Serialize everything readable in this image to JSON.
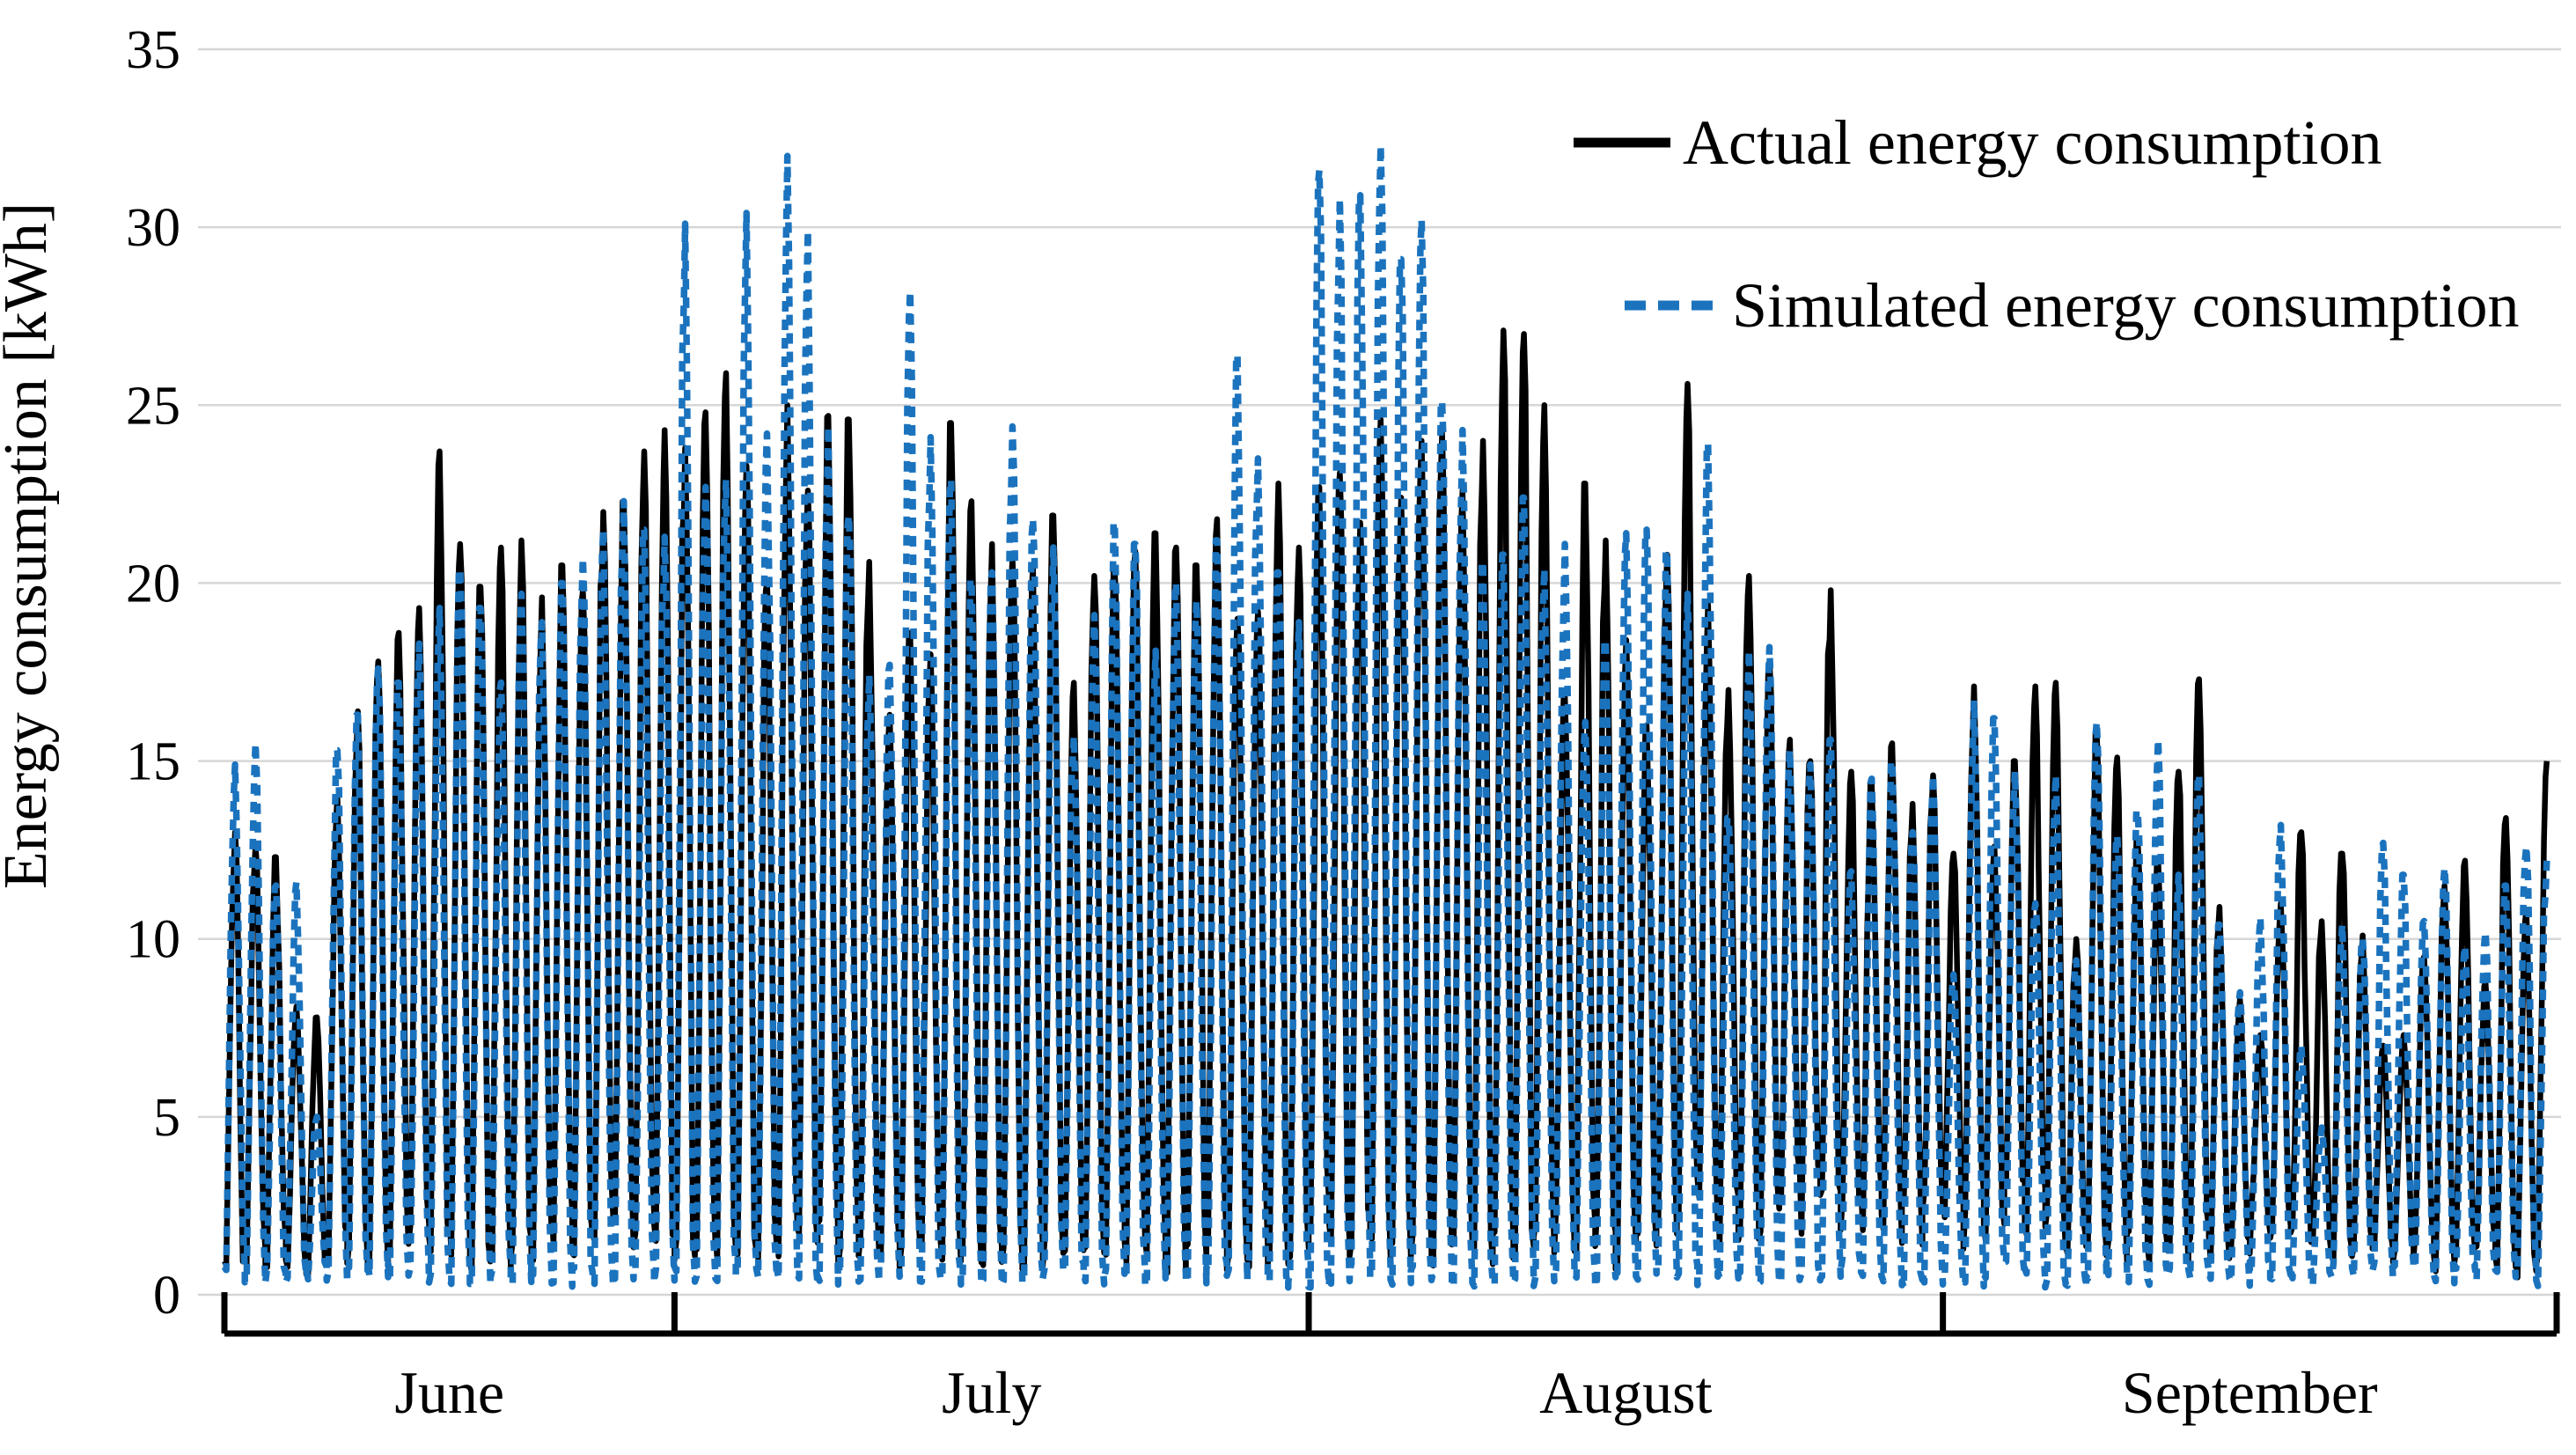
{
  "figure": {
    "kind": "time-series line chart",
    "background": "#ffffff"
  },
  "y_axis": {
    "title": "Energy consumption [kWh]",
    "tick_labels": [
      "0",
      "5",
      "10",
      "15",
      "20",
      "25",
      "30",
      "35"
    ],
    "tick_values": [
      0,
      5,
      10,
      15,
      20,
      25,
      30,
      35
    ],
    "min": 0,
    "max": 35,
    "tick_step": 5
  },
  "x_axis": {
    "month_labels": [
      "June",
      "July",
      "August",
      "September"
    ],
    "style": "bracket axis with tick separators between months"
  },
  "legend": {
    "items": [
      {
        "label": "Actual energy consumption",
        "line_style": "solid",
        "color": "#000000"
      },
      {
        "label": "Simulated energy consumption",
        "line_style": "dashed",
        "color": "#1B73BE"
      }
    ],
    "position": "top-right, inside plot"
  },
  "colors": {
    "actual": "#000000",
    "simulated": "#1B73BE",
    "gridline": "#D6D6D6",
    "axis": "#000000"
  },
  "chart_data": {
    "type": "line",
    "title": "",
    "xlabel": "",
    "ylabel": "Energy consumption [kWh]",
    "ylim": [
      0,
      35
    ],
    "grid": "horizontal gridlines every 5 kWh, light gray",
    "legend_position": "top-right inside plot",
    "x_unit": "day (sub-daily spiky profile, one spike per day)",
    "months": [
      {
        "label": "June",
        "days": 22
      },
      {
        "label": "July",
        "days": 31
      },
      {
        "label": "August",
        "days": 31
      },
      {
        "label": "September",
        "days": 30
      }
    ],
    "total_days": 114,
    "note": "Values are estimated daily peak consumption (kWh) read from the plot; each day the curves rise from a nightly minimum to the peak and fall back. Nightly minima: simulated ~0.3-0.8 kWh; actual ~1-1.6 kWh, elevated to ~2-2.8 kWh late August through early September.",
    "series": [
      {
        "name": "Actual energy consumption",
        "style": "solid",
        "color": "#000000",
        "daily_peaks": [
          13.0,
          12.6,
          12.3,
          8.1,
          7.8,
          14.0,
          16.4,
          17.8,
          18.6,
          19.3,
          23.7,
          21.1,
          19.9,
          21.0,
          21.2,
          19.6,
          20.5,
          19.8,
          22.0,
          22.3,
          23.7,
          24.3,
          23.8,
          24.8,
          25.9,
          23.3,
          20.0,
          25.0,
          22.6,
          24.7,
          24.6,
          20.6,
          16.3,
          18.6,
          18.0,
          24.5,
          22.3,
          21.1,
          20.7,
          20.5,
          21.9,
          17.2,
          20.2,
          20.4,
          20.9,
          21.4,
          21.0,
          20.5,
          21.8,
          19.0,
          19.2,
          22.8,
          21.0,
          22.7,
          23.1,
          21.7,
          24.6,
          22.4,
          24.0,
          24.2,
          22.6,
          24.0,
          27.1,
          27.0,
          25.0,
          16.8,
          22.8,
          21.2,
          18.4,
          16.0,
          20.8,
          25.6,
          19.4,
          17.0,
          20.2,
          17.8,
          15.6,
          15.0,
          19.8,
          14.7,
          14.4,
          15.5,
          13.8,
          14.6,
          12.4,
          17.1,
          12.6,
          15.0,
          17.1,
          17.2,
          10.0,
          15.8,
          15.1,
          12.8,
          12.2,
          14.7,
          17.3,
          10.9,
          8.3,
          7.3,
          11.0,
          13.0,
          10.5,
          12.4,
          10.1,
          7.0,
          7.3,
          9.5,
          11.5,
          12.2,
          8.8,
          13.4,
          10.8,
          15.0
        ]
      },
      {
        "name": "Simulated energy consumption",
        "style": "dashed",
        "color": "#1B73BE",
        "daily_peaks": [
          14.9,
          15.5,
          11.5,
          11.6,
          5.0,
          15.3,
          16.3,
          17.6,
          17.2,
          18.3,
          19.3,
          20.4,
          19.3,
          17.2,
          19.7,
          18.9,
          20.0,
          20.7,
          21.5,
          22.3,
          21.5,
          21.3,
          30.1,
          22.7,
          22.9,
          30.4,
          24.2,
          32.0,
          29.9,
          24.4,
          21.9,
          17.4,
          17.7,
          28.2,
          24.1,
          22.9,
          20.1,
          20.3,
          24.4,
          21.8,
          21.0,
          15.7,
          19.1,
          21.7,
          21.1,
          18.1,
          20.0,
          19.5,
          21.2,
          26.4,
          23.5,
          20.3,
          18.9,
          31.6,
          30.8,
          30.9,
          32.3,
          29.1,
          30.2,
          25.1,
          24.3,
          20.6,
          20.8,
          22.4,
          20.4,
          21.1,
          16.1,
          18.4,
          21.4,
          21.5,
          20.9,
          19.7,
          23.9,
          13.4,
          18.1,
          18.2,
          15.3,
          14.9,
          15.6,
          11.9,
          14.5,
          15.0,
          13.0,
          14.6,
          9.0,
          16.7,
          16.2,
          14.7,
          11.0,
          14.6,
          9.4,
          16.1,
          12.9,
          13.6,
          15.6,
          11.8,
          14.6,
          10.4,
          8.5,
          10.6,
          13.2,
          7.0,
          4.7,
          10.4,
          10.0,
          12.7,
          11.8,
          10.5,
          12.0,
          9.8,
          10.2,
          11.5,
          12.6,
          12.2
        ]
      }
    ],
    "night_minima": {
      "simulated_typical": 0.5,
      "actual_typical": 1.2,
      "actual_elevated": 2.4,
      "actual_elevated_day_index_range": [
        69,
        89
      ]
    }
  }
}
